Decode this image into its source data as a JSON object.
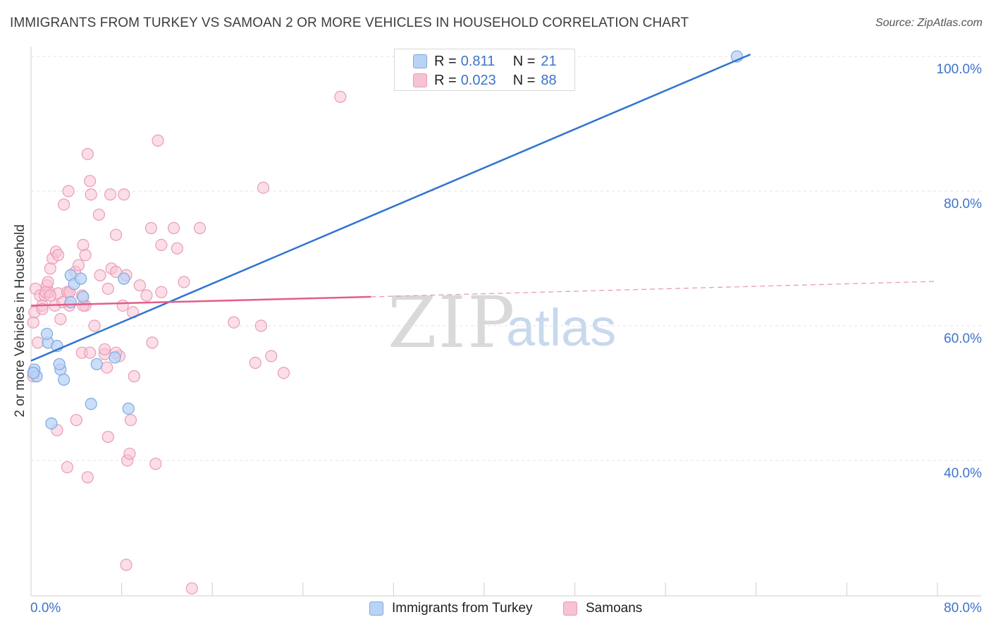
{
  "header": {
    "title": "IMMIGRANTS FROM TURKEY VS SAMOAN 2 OR MORE VEHICLES IN HOUSEHOLD CORRELATION CHART",
    "source": "Source: ZipAtlas.com"
  },
  "watermark": {
    "zip": "ZIP",
    "atlas": "atlas"
  },
  "legend": {
    "turkey": {
      "r_label": "R =",
      "r_value": "0.811",
      "n_label": "N =",
      "n_value": "21"
    },
    "samoa": {
      "r_label": "R =",
      "r_value": "0.023",
      "n_label": "N =",
      "n_value": "88"
    }
  },
  "bottom_legend": {
    "turkey": "Immigrants from Turkey",
    "samoa": "Samoans"
  },
  "x_axis": {
    "left_label": "0.0%",
    "right_label": "80.0%"
  },
  "colors": {
    "blue": "#2f74d0",
    "blue_fill": "#b9d3f5",
    "blue_stroke": "#7ea8e2",
    "pink": "#e35d8a",
    "pink_fill": "#f7c2d3",
    "pink_stroke": "#ea9bb7",
    "axis_text": "#3d74c9",
    "grid": "#e3e3e3"
  },
  "chart_data": {
    "type": "scatter",
    "title": "IMMIGRANTS FROM TURKEY VS SAMOAN 2 OR MORE VEHICLES IN HOUSEHOLD CORRELATION CHART",
    "xlabel": "",
    "ylabel": "2 or more Vehicles in Household",
    "xlim": [
      0,
      80
    ],
    "ylim": [
      20.5,
      102
    ],
    "y_ticks": [
      {
        "value": 100,
        "label": "100.0%"
      },
      {
        "value": 80,
        "label": "80.0%"
      },
      {
        "value": 60,
        "label": "60.0%"
      },
      {
        "value": 40,
        "label": "40.0%"
      }
    ],
    "x_ticks": [
      0,
      8,
      16,
      24,
      32,
      40,
      48,
      56,
      64,
      72,
      80
    ],
    "grid": true,
    "series": [
      {
        "name": "Immigrants from Turkey",
        "r": 0.811,
        "n": 21,
        "points": [
          [
            0.3,
            53.5
          ],
          [
            0.5,
            52.5
          ],
          [
            0.2,
            53.0
          ],
          [
            1.5,
            57.5
          ],
          [
            1.4,
            58.8
          ],
          [
            2.3,
            57.0
          ],
          [
            2.6,
            53.5
          ],
          [
            2.9,
            52.0
          ],
          [
            1.8,
            45.5
          ],
          [
            2.5,
            54.3
          ],
          [
            3.5,
            63.5
          ],
          [
            3.5,
            67.5
          ],
          [
            3.8,
            66.2
          ],
          [
            4.4,
            67.0
          ],
          [
            4.6,
            64.3
          ],
          [
            5.3,
            48.4
          ],
          [
            5.8,
            54.3
          ],
          [
            7.4,
            55.3
          ],
          [
            8.2,
            67.0
          ],
          [
            8.6,
            47.7
          ],
          [
            62.3,
            100.0
          ]
        ],
        "trend": {
          "x0": 0.0,
          "y0": 54.8,
          "x1": 63.5,
          "y1": 100.3,
          "style": "solid"
        }
      },
      {
        "name": "Samoans",
        "r": 0.023,
        "n": 88,
        "points": [
          [
            0.2,
            52.5
          ],
          [
            0.3,
            53.0
          ],
          [
            0.2,
            60.5
          ],
          [
            0.3,
            62.0
          ],
          [
            0.4,
            65.5
          ],
          [
            0.8,
            64.5
          ],
          [
            1.0,
            63.0
          ],
          [
            1.2,
            64.5
          ],
          [
            1.4,
            66.0
          ],
          [
            1.6,
            65.0
          ],
          [
            1.7,
            68.5
          ],
          [
            1.9,
            70.0
          ],
          [
            2.1,
            63.0
          ],
          [
            2.2,
            71.0
          ],
          [
            2.4,
            64.8
          ],
          [
            2.6,
            61.0
          ],
          [
            2.8,
            63.5
          ],
          [
            3.2,
            65.0
          ],
          [
            3.4,
            63.0
          ],
          [
            3.4,
            65.0
          ],
          [
            3.9,
            68.0
          ],
          [
            4.2,
            69.0
          ],
          [
            4.6,
            72.0
          ],
          [
            4.8,
            63.0
          ],
          [
            4.5,
            56.0
          ],
          [
            5.0,
            85.5
          ],
          [
            5.2,
            81.5
          ],
          [
            4.8,
            70.5
          ],
          [
            5.3,
            79.5
          ],
          [
            6.0,
            76.5
          ],
          [
            6.5,
            55.8
          ],
          [
            6.7,
            53.8
          ],
          [
            6.1,
            67.5
          ],
          [
            7.0,
            79.5
          ],
          [
            7.5,
            73.5
          ],
          [
            7.1,
            68.5
          ],
          [
            6.8,
            65.5
          ],
          [
            8.2,
            79.5
          ],
          [
            8.1,
            63.0
          ],
          [
            8.4,
            67.5
          ],
          [
            7.8,
            55.5
          ],
          [
            7.5,
            56.0
          ],
          [
            9.1,
            52.5
          ],
          [
            9.6,
            66.0
          ],
          [
            10.2,
            64.5
          ],
          [
            10.6,
            74.5
          ],
          [
            11.2,
            87.5
          ],
          [
            11.5,
            72.0
          ],
          [
            11.5,
            65.0
          ],
          [
            12.6,
            74.5
          ],
          [
            12.9,
            71.5
          ],
          [
            13.5,
            66.5
          ],
          [
            14.9,
            74.5
          ],
          [
            17.9,
            60.5
          ],
          [
            19.8,
            54.5
          ],
          [
            20.3,
            60.0
          ],
          [
            20.5,
            80.5
          ],
          [
            21.2,
            55.5
          ],
          [
            22.3,
            53.0
          ],
          [
            27.3,
            94.0
          ],
          [
            4.6,
            63.0
          ],
          [
            5.6,
            60.0
          ],
          [
            4.0,
            46.0
          ],
          [
            2.3,
            44.5
          ],
          [
            3.2,
            39.0
          ],
          [
            5.0,
            37.5
          ],
          [
            6.8,
            43.5
          ],
          [
            8.5,
            40.0
          ],
          [
            8.7,
            41.0
          ],
          [
            8.8,
            46.0
          ],
          [
            10.7,
            57.5
          ],
          [
            11.0,
            39.5
          ],
          [
            8.4,
            24.5
          ],
          [
            14.2,
            21.0
          ],
          [
            4.5,
            64.5
          ],
          [
            1.5,
            66.5
          ],
          [
            2.4,
            70.5
          ],
          [
            3.4,
            65.0
          ],
          [
            1.3,
            65.0
          ],
          [
            1.7,
            64.5
          ],
          [
            2.9,
            78.0
          ],
          [
            3.3,
            80.0
          ],
          [
            5.2,
            56.0
          ],
          [
            6.5,
            56.5
          ],
          [
            7.5,
            68.0
          ],
          [
            9.0,
            62.0
          ],
          [
            1.0,
            62.5
          ],
          [
            0.6,
            57.5
          ]
        ],
        "trend": {
          "solid": {
            "x0": 0.0,
            "y0": 63.0,
            "x1": 30.0,
            "y1": 64.3
          },
          "dashed": {
            "x0": 30.0,
            "y0": 64.3,
            "x1": 80.0,
            "y1": 66.6
          }
        }
      }
    ]
  }
}
